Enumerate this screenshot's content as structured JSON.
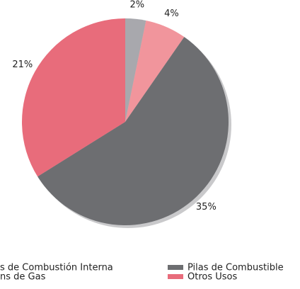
{
  "chart_data": {
    "type": "pie",
    "categories": [
      "s de Combustión Interna",
      "ns de Gas",
      "Pilas de Combustible",
      "Otros Usos"
    ],
    "values": [
      2,
      4,
      35,
      21
    ],
    "value_labels": [
      "2%",
      "4%",
      "35%",
      "21%"
    ],
    "colors": [
      "#a8a8ad",
      "#f1959c",
      "#6d6e71",
      "#e86c7b"
    ]
  }
}
